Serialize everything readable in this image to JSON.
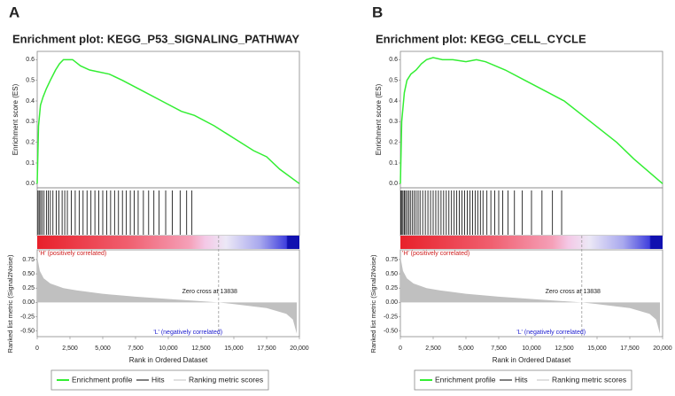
{
  "chart_data": [
    {
      "type": "gsea",
      "panel_label": "A",
      "title": "Enrichment plot: KEGG_P53_SIGNALING_PATHWAY",
      "ylabel": "Enrichment score (ES)",
      "y2label": "Ranked list metric (Signal2Noise)",
      "xlabel": "Rank in Ordered Dataset",
      "xlim": [
        0,
        20000
      ],
      "xticks": [
        0,
        {
          "value": 2500,
          "label": "2,500"
        },
        {
          "value": 5000,
          "label": "5,000"
        },
        {
          "value": 7500,
          "label": "7,500"
        },
        {
          "value": 10000,
          "label": "10,000"
        },
        {
          "value": 12500,
          "label": "12,500"
        },
        {
          "value": 15000,
          "label": "15,000"
        },
        {
          "value": 17500,
          "label": "17,500"
        },
        {
          "value": 20000,
          "label": "20,000"
        }
      ],
      "ylim": [
        -0.02,
        0.64
      ],
      "yticks": [
        {
          "value": 0,
          "label": "0.0"
        },
        0.1,
        0.2,
        0.3,
        0.4,
        0.5,
        0.6
      ],
      "y2lim": [
        -0.6,
        0.92
      ],
      "y2ticks": [
        0.75,
        {
          "value": 0.5,
          "label": "0.50"
        },
        0.25,
        {
          "value": 0,
          "label": "0.00"
        },
        -0.25,
        {
          "value": -0.5,
          "label": "-0.50"
        }
      ],
      "annotations": {
        "positive": "'H' (positively correlated)",
        "negative": "'L' (negatively correlated)",
        "zero_cross": {
          "value": 13838,
          "label": "Zero cross at 13838"
        }
      },
      "series": [
        {
          "name": "Enrichment profile",
          "color": "#33ee33",
          "x": [
            0,
            100,
            250,
            450,
            700,
            1000,
            1400,
            1700,
            2000,
            2700,
            3300,
            4000,
            5500,
            6500,
            8000,
            9500,
            11000,
            12000,
            13500,
            15000,
            16500,
            17500,
            18500,
            20000
          ],
          "values": [
            0,
            0.28,
            0.38,
            0.42,
            0.46,
            0.5,
            0.55,
            0.58,
            0.6,
            0.6,
            0.57,
            0.55,
            0.53,
            0.5,
            0.45,
            0.4,
            0.35,
            0.33,
            0.28,
            0.22,
            0.16,
            0.13,
            0.07,
            0
          ]
        },
        {
          "name": "Hits",
          "color": "#000000",
          "x": [
            60,
            150,
            260,
            380,
            520,
            700,
            850,
            1000,
            1200,
            1450,
            1650,
            1900,
            2100,
            2300,
            2600,
            2900,
            3200,
            3500,
            3800,
            4100,
            4400,
            4700,
            5000,
            5300,
            5600,
            5900,
            6200,
            6500,
            6800,
            7100,
            7400,
            7700,
            8100,
            8500,
            8900,
            9300,
            9800,
            10300,
            10900,
            11400,
            11800
          ]
        },
        {
          "name": "Ranking metric scores",
          "color": "#c0c0c0",
          "axis": "y2",
          "x": [
            0,
            200,
            500,
            1000,
            2000,
            3000,
            5000,
            7500,
            10000,
            12500,
            13838,
            15000,
            17500,
            19000,
            19500,
            19800
          ],
          "values": [
            0.8,
            0.55,
            0.42,
            0.33,
            0.25,
            0.21,
            0.15,
            0.1,
            0.06,
            0.02,
            0,
            -0.03,
            -0.1,
            -0.2,
            -0.3,
            -0.55
          ]
        }
      ]
    },
    {
      "type": "gsea",
      "panel_label": "B",
      "title": "Enrichment plot: KEGG_CELL_CYCLE",
      "ylabel": "Enrichment score (ES)",
      "y2label": "Ranked list metric (Signal2Noise)",
      "xlabel": "Rank in Ordered Dataset",
      "xlim": [
        0,
        20000
      ],
      "xticks": [
        0,
        {
          "value": 2500,
          "label": "2,500"
        },
        {
          "value": 5000,
          "label": "5,000"
        },
        {
          "value": 7500,
          "label": "7,500"
        },
        {
          "value": 10000,
          "label": "10,000"
        },
        {
          "value": 12500,
          "label": "12,500"
        },
        {
          "value": 15000,
          "label": "15,000"
        },
        {
          "value": 17500,
          "label": "17,500"
        },
        {
          "value": 20000,
          "label": "20,000"
        }
      ],
      "ylim": [
        -0.02,
        0.64
      ],
      "yticks": [
        {
          "value": 0,
          "label": "0.0"
        },
        0.1,
        0.2,
        0.3,
        0.4,
        0.5,
        0.6
      ],
      "y2lim": [
        -0.6,
        0.92
      ],
      "y2ticks": [
        0.75,
        {
          "value": 0.5,
          "label": "0.50"
        },
        0.25,
        {
          "value": 0,
          "label": "0.00"
        },
        -0.25,
        {
          "value": -0.5,
          "label": "-0.50"
        }
      ],
      "annotations": {
        "positive": "'H' (positively correlated)",
        "negative": "'L' (negatively correlated)",
        "zero_cross": {
          "value": 13838,
          "label": "Zero cross at 13838"
        }
      },
      "series": [
        {
          "name": "Enrichment profile",
          "color": "#33ee33",
          "x": [
            0,
            100,
            300,
            500,
            800,
            1200,
            1600,
            2000,
            2500,
            3200,
            4000,
            5000,
            5800,
            6500,
            8000,
            9500,
            11000,
            12500,
            14500,
            16500,
            17800,
            20000
          ],
          "values": [
            0,
            0.3,
            0.44,
            0.5,
            0.53,
            0.55,
            0.58,
            0.6,
            0.61,
            0.6,
            0.6,
            0.59,
            0.6,
            0.59,
            0.55,
            0.5,
            0.45,
            0.4,
            0.3,
            0.2,
            0.12,
            0
          ]
        },
        {
          "name": "Hits",
          "color": "#000000",
          "x": [
            40,
            120,
            200,
            300,
            400,
            520,
            640,
            760,
            900,
            1050,
            1200,
            1350,
            1500,
            1700,
            1900,
            2100,
            2300,
            2500,
            2700,
            2900,
            3100,
            3300,
            3500,
            3700,
            3900,
            4100,
            4300,
            4500,
            4700,
            4900,
            5100,
            5300,
            5500,
            5700,
            5900,
            6100,
            6300,
            6600,
            6900,
            7200,
            7500,
            7800,
            8200,
            8700,
            9300,
            10000,
            10800,
            11600,
            12300
          ]
        },
        {
          "name": "Ranking metric scores",
          "color": "#c0c0c0",
          "axis": "y2",
          "x": [
            0,
            200,
            500,
            1000,
            2000,
            3000,
            5000,
            7500,
            10000,
            12500,
            13838,
            15000,
            17500,
            19000,
            19500,
            19800
          ],
          "values": [
            0.8,
            0.55,
            0.42,
            0.33,
            0.25,
            0.21,
            0.15,
            0.1,
            0.06,
            0.02,
            0,
            -0.03,
            -0.1,
            -0.2,
            -0.3,
            -0.55
          ]
        }
      ]
    }
  ]
}
